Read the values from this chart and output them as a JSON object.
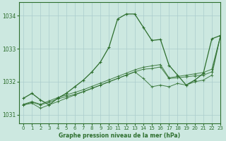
{
  "title": "Graphe pression niveau de la mer (hPa)",
  "bg_color": "#cce8e0",
  "grid_color": "#aacccc",
  "line_color": "#2d6e2d",
  "xlim": [
    -0.5,
    23
  ],
  "ylim": [
    1030.75,
    1034.4
  ],
  "yticks": [
    1031,
    1032,
    1033,
    1034
  ],
  "xticks": [
    0,
    1,
    2,
    3,
    4,
    5,
    6,
    7,
    8,
    9,
    10,
    11,
    12,
    13,
    14,
    15,
    16,
    17,
    18,
    19,
    20,
    21,
    22,
    23
  ],
  "series_dotted": [
    [
      1031.5,
      1031.65,
      1031.45,
      1031.3,
      1031.5,
      1031.65,
      1031.85,
      1032.05,
      1032.3,
      1032.6,
      1033.05,
      1033.9,
      1034.05,
      1034.05,
      1033.65,
      1033.25,
      1033.28,
      1032.5,
      1032.2,
      1031.9,
      1032.05,
      1032.25,
      1033.3,
      1033.4
    ]
  ],
  "series_linear": [
    [
      1031.3,
      1031.35,
      1031.2,
      1031.3,
      1031.4,
      1031.5,
      1031.6,
      1031.7,
      1031.8,
      1031.9,
      1032.0,
      1032.1,
      1032.2,
      1032.3,
      1032.1,
      1031.85,
      1031.9,
      1031.85,
      1031.95,
      1031.9,
      1032.0,
      1032.05,
      1032.2,
      1033.38
    ],
    [
      1031.3,
      1031.38,
      1031.3,
      1031.38,
      1031.48,
      1031.55,
      1031.62,
      1031.7,
      1031.8,
      1031.9,
      1032.0,
      1032.1,
      1032.2,
      1032.3,
      1032.38,
      1032.4,
      1032.45,
      1032.1,
      1032.12,
      1032.15,
      1032.18,
      1032.2,
      1032.3,
      1033.38
    ],
    [
      1031.32,
      1031.4,
      1031.32,
      1031.42,
      1031.52,
      1031.6,
      1031.68,
      1031.76,
      1031.86,
      1031.96,
      1032.06,
      1032.16,
      1032.26,
      1032.36,
      1032.44,
      1032.48,
      1032.52,
      1032.12,
      1032.16,
      1032.2,
      1032.24,
      1032.28,
      1032.38,
      1033.38
    ]
  ]
}
